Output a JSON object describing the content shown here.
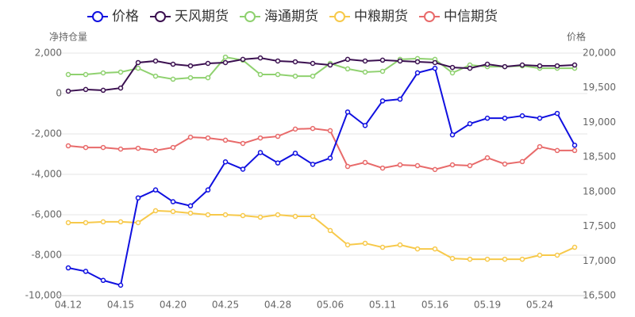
{
  "chart_data": {
    "type": "line",
    "y_label": "净持仓量",
    "y2_label": "价格",
    "categories": [
      "04.12",
      null,
      null,
      "04.15",
      null,
      null,
      "04.20",
      null,
      null,
      "04.25",
      null,
      null,
      "04.28",
      null,
      null,
      "05.06",
      null,
      null,
      "05.11",
      null,
      null,
      "05.16",
      null,
      null,
      "05.19",
      null,
      null,
      "05.24",
      null,
      null
    ],
    "ylim": [
      -10000,
      2000
    ],
    "yticks": [
      {
        "value": -10000,
        "label": "-10,000"
      },
      {
        "value": -8000,
        "label": "-8,000"
      },
      {
        "value": -6000,
        "label": "-6,000"
      },
      {
        "value": -4000,
        "label": "-4,000"
      },
      {
        "value": -2000,
        "label": "-2,000"
      },
      0,
      {
        "value": 2000,
        "label": "2,000"
      }
    ],
    "y2lim": [
      16500,
      20000
    ],
    "y2ticks": [
      {
        "value": 16500,
        "label": "16,500"
      },
      {
        "value": 17000,
        "label": "17,000"
      },
      {
        "value": 17500,
        "label": "17,500"
      },
      {
        "value": 18000,
        "label": "18,000"
      },
      {
        "value": 18500,
        "label": "18,500"
      },
      {
        "value": 19000,
        "label": "19,000"
      },
      {
        "value": 19500,
        "label": "19,500"
      },
      {
        "value": 20000,
        "label": "20,000"
      }
    ],
    "grid": true,
    "legend": "top",
    "series": [
      {
        "name": "价格",
        "color": "#1010e0",
        "axis": "y2",
        "values": [
          16900,
          16850,
          16720,
          16650,
          17910,
          18025,
          17855,
          17795,
          18025,
          18430,
          18325,
          18565,
          18415,
          18555,
          18395,
          18485,
          19150,
          18955,
          19310,
          19335,
          19715,
          19780,
          18820,
          18980,
          19060,
          19060,
          19095,
          19060,
          19130,
          18670
        ]
      },
      {
        "name": "天风期货",
        "color": "#3b1050",
        "values": [
          120,
          200,
          160,
          270,
          1530,
          1610,
          1450,
          1370,
          1490,
          1530,
          1690,
          1760,
          1610,
          1570,
          1490,
          1410,
          1690,
          1610,
          1650,
          1610,
          1570,
          1530,
          1290,
          1250,
          1450,
          1330,
          1410,
          1370,
          1370,
          1410
        ]
      },
      {
        "name": "海通期货",
        "color": "#8fd16f",
        "values": [
          940,
          940,
          1020,
          1060,
          1250,
          860,
          710,
          780,
          780,
          1800,
          1650,
          940,
          940,
          860,
          860,
          1490,
          1220,
          1060,
          1100,
          1690,
          1730,
          1690,
          1020,
          1410,
          1330,
          1330,
          1370,
          1250,
          1250,
          1250
        ]
      },
      {
        "name": "中粮期货",
        "color": "#f7c94a",
        "values": [
          -6390,
          -6390,
          -6350,
          -6350,
          -6390,
          -5800,
          -5840,
          -5920,
          -6000,
          -6000,
          -6040,
          -6120,
          -6000,
          -6080,
          -6080,
          -6780,
          -7490,
          -7410,
          -7610,
          -7490,
          -7690,
          -7690,
          -8160,
          -8200,
          -8200,
          -8200,
          -8200,
          -8000,
          -8000,
          -7610
        ]
      },
      {
        "name": "中信期货",
        "color": "#e86a6a",
        "values": [
          -2590,
          -2670,
          -2670,
          -2750,
          -2710,
          -2820,
          -2670,
          -2160,
          -2200,
          -2310,
          -2470,
          -2200,
          -2120,
          -1760,
          -1730,
          -1840,
          -3610,
          -3410,
          -3690,
          -3530,
          -3570,
          -3760,
          -3530,
          -3570,
          -3180,
          -3490,
          -3370,
          -2630,
          -2820,
          -2820
        ]
      }
    ]
  }
}
